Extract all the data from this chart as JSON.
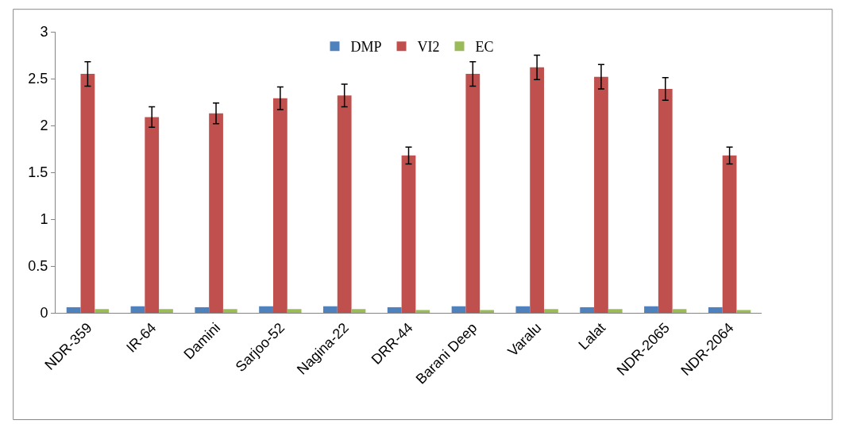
{
  "chart_data": {
    "type": "bar",
    "categories": [
      "NDR-359",
      "IR-64",
      "Damini",
      "Sarjoo-52",
      "Nagina-22",
      "DRR-44",
      "Barani Deep",
      "Varalu",
      "Lalat",
      "NDR-2065",
      "NDR-2064"
    ],
    "series": [
      {
        "name": "DMP",
        "color": "#4f81bd",
        "values": [
          0.06,
          0.07,
          0.06,
          0.07,
          0.07,
          0.06,
          0.07,
          0.07,
          0.06,
          0.07,
          0.06
        ]
      },
      {
        "name": "VI2",
        "color": "#c0504d",
        "values": [
          2.55,
          2.09,
          2.13,
          2.29,
          2.32,
          1.68,
          2.55,
          2.62,
          2.52,
          2.39,
          1.68
        ],
        "errors": [
          0.13,
          0.11,
          0.11,
          0.12,
          0.12,
          0.09,
          0.13,
          0.13,
          0.13,
          0.12,
          0.09
        ]
      },
      {
        "name": "EC",
        "color": "#9bbb59",
        "values": [
          0.04,
          0.04,
          0.04,
          0.04,
          0.04,
          0.03,
          0.03,
          0.04,
          0.04,
          0.04,
          0.03
        ]
      }
    ],
    "ylim": [
      0,
      3
    ],
    "yticks": [
      0,
      0.5,
      1,
      1.5,
      2,
      2.5,
      3
    ],
    "legend": "top"
  }
}
